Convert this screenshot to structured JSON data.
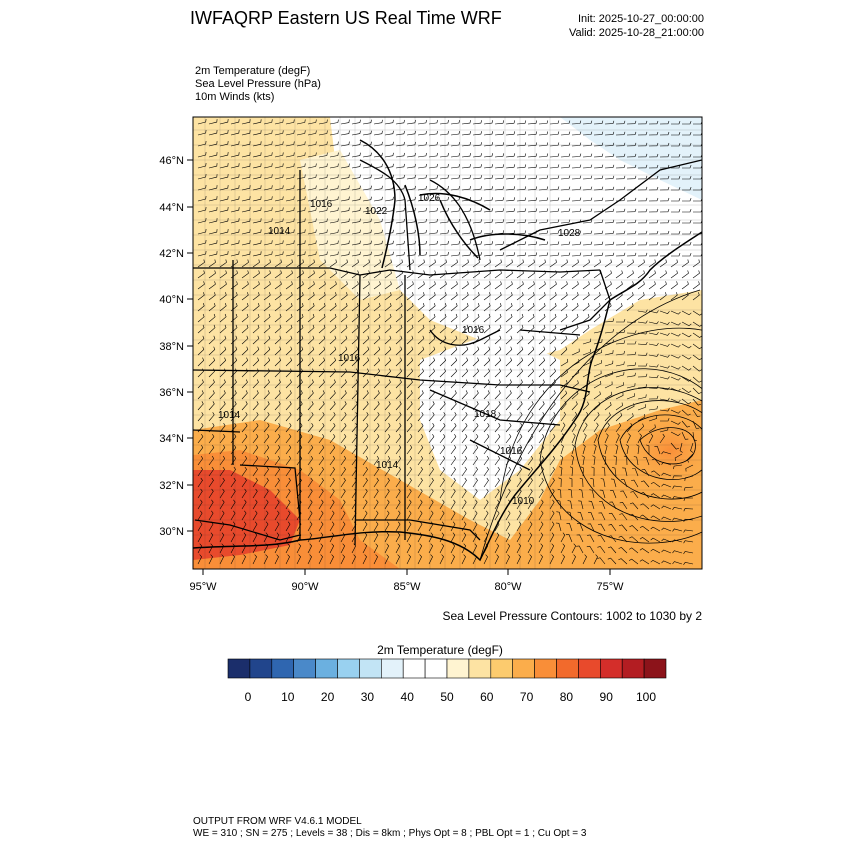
{
  "header": {
    "title": "IWFAQRP Eastern US Real Time WRF",
    "init": "Init: 2025-10-27_00:00:00",
    "valid": "Valid: 2025-10-28_21:00:00"
  },
  "fields": [
    "2m Temperature   (degF)",
    "Sea Level Pressure   (hPa)",
    "10m Winds   (kts)"
  ],
  "map": {
    "lat_labels": [
      "46°N",
      "44°N",
      "42°N",
      "40°N",
      "38°N",
      "36°N",
      "34°N",
      "32°N",
      "30°N"
    ],
    "lon_labels": [
      "95°W",
      "90°W",
      "85°W",
      "80°W",
      "75°W"
    ],
    "pressure_labels": [
      "1016",
      "1022",
      "1026",
      "1014",
      "1028",
      "1016",
      "1016",
      "1014",
      "1018",
      "1014",
      "1016",
      "1010"
    ],
    "contour_note": "Sea Level Pressure Contours: 1002 to 1030 by 2"
  },
  "colorbar": {
    "title": "2m Temperature  (degF)",
    "tick_labels": [
      "0",
      "10",
      "20",
      "30",
      "40",
      "50",
      "60",
      "70",
      "80",
      "90",
      "100"
    ],
    "colors": [
      "#1b2e6b",
      "#21458c",
      "#2f66b0",
      "#4a89c9",
      "#6bb0e0",
      "#99d1f0",
      "#c2e4f5",
      "#e3f2fa",
      "#ffffff",
      "#ffffff",
      "#fff4d1",
      "#fde3a3",
      "#fccb6e",
      "#fbad4b",
      "#f98e38",
      "#f26a2c",
      "#e84a2c",
      "#d42e2a",
      "#b31d22",
      "#8c131a"
    ]
  },
  "footer": {
    "line1": "OUTPUT FROM WRF V4.6.1 MODEL",
    "line2": "WE = 310 ; SN = 275 ; Levels = 38 ; Dis = 8km ; Phys Opt = 8 ; PBL Opt = 1 ; Cu Opt = 3"
  }
}
